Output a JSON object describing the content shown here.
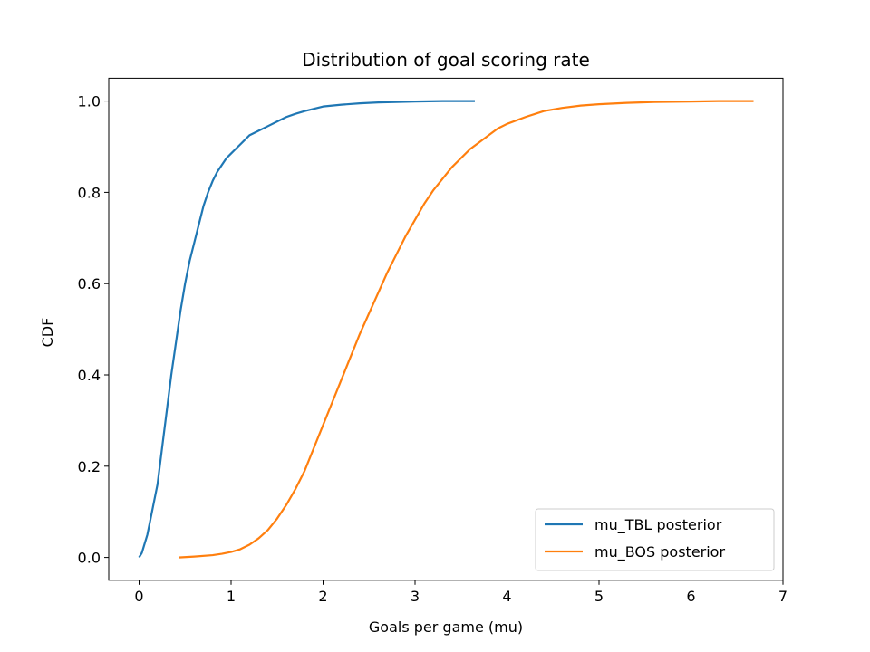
{
  "chart_data": {
    "type": "line",
    "title": "Distribution of goal scoring rate",
    "xlabel": "Goals per game (mu)",
    "ylabel": "CDF",
    "xlim": [
      -0.33,
      7.0
    ],
    "ylim": [
      -0.05,
      1.05
    ],
    "xticks": [
      0,
      1,
      2,
      3,
      4,
      5,
      6,
      7
    ],
    "yticks": [
      0.0,
      0.2,
      0.4,
      0.6,
      0.8,
      1.0
    ],
    "xtick_labels": [
      "0",
      "1",
      "2",
      "3",
      "4",
      "5",
      "6",
      "7"
    ],
    "ytick_labels": [
      "0.0",
      "0.2",
      "0.4",
      "0.6",
      "0.8",
      "1.0"
    ],
    "grid": false,
    "legend_position": "bottom-right",
    "series": [
      {
        "name": "mu_TBL posterior",
        "color": "#1f77b4",
        "x": [
          0.0,
          0.03,
          0.06,
          0.09,
          0.12,
          0.15,
          0.2,
          0.25,
          0.3,
          0.35,
          0.4,
          0.45,
          0.5,
          0.55,
          0.6,
          0.65,
          0.7,
          0.75,
          0.8,
          0.85,
          0.9,
          0.95,
          1.0,
          1.05,
          1.1,
          1.15,
          1.2,
          1.25,
          1.3,
          1.4,
          1.5,
          1.6,
          1.7,
          1.8,
          1.9,
          2.0,
          2.2,
          2.4,
          2.6,
          2.8,
          3.0,
          3.3,
          3.65
        ],
        "y": [
          0.0,
          0.01,
          0.03,
          0.05,
          0.08,
          0.11,
          0.16,
          0.24,
          0.32,
          0.4,
          0.47,
          0.54,
          0.6,
          0.65,
          0.69,
          0.73,
          0.77,
          0.8,
          0.825,
          0.845,
          0.86,
          0.875,
          0.885,
          0.895,
          0.905,
          0.915,
          0.925,
          0.93,
          0.935,
          0.945,
          0.955,
          0.965,
          0.972,
          0.978,
          0.983,
          0.988,
          0.992,
          0.995,
          0.997,
          0.998,
          0.999,
          1.0,
          1.0
        ]
      },
      {
        "name": "mu_BOS posterior",
        "color": "#ff7f0e",
        "x": [
          0.43,
          0.6,
          0.8,
          0.9,
          1.0,
          1.1,
          1.2,
          1.3,
          1.4,
          1.5,
          1.6,
          1.7,
          1.8,
          1.9,
          2.0,
          2.1,
          2.2,
          2.3,
          2.4,
          2.5,
          2.6,
          2.7,
          2.8,
          2.9,
          3.0,
          3.1,
          3.2,
          3.3,
          3.4,
          3.5,
          3.6,
          3.7,
          3.8,
          3.9,
          4.0,
          4.2,
          4.4,
          4.6,
          4.8,
          5.0,
          5.3,
          5.6,
          6.0,
          6.3,
          6.68
        ],
        "y": [
          0.0,
          0.002,
          0.005,
          0.008,
          0.012,
          0.018,
          0.028,
          0.042,
          0.06,
          0.085,
          0.115,
          0.15,
          0.19,
          0.24,
          0.29,
          0.34,
          0.39,
          0.44,
          0.49,
          0.535,
          0.58,
          0.625,
          0.665,
          0.705,
          0.74,
          0.775,
          0.805,
          0.83,
          0.855,
          0.875,
          0.895,
          0.91,
          0.925,
          0.94,
          0.95,
          0.965,
          0.978,
          0.985,
          0.99,
          0.993,
          0.996,
          0.998,
          0.999,
          1.0,
          1.0
        ]
      }
    ]
  }
}
